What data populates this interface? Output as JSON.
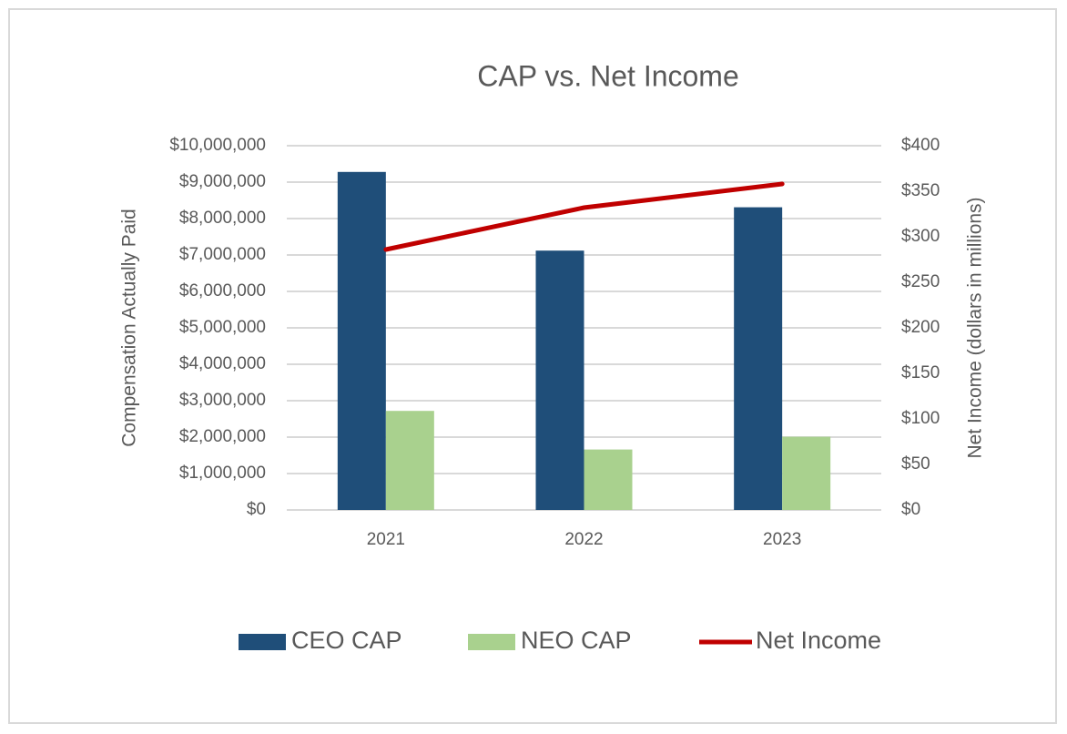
{
  "chart_data": {
    "type": "bar",
    "title": "CAP vs. Net Income",
    "y_label": "Compensation Actually Paid",
    "y2_label": "Net Income (dollars in millions)",
    "categories": [
      "2021",
      "2022",
      "2023"
    ],
    "series": [
      {
        "name": "CEO CAP",
        "type": "bar",
        "color": "#1f4e79",
        "values": [
          9280000,
          7120000,
          8310000
        ]
      },
      {
        "name": "NEO CAP",
        "type": "bar",
        "color": "#a9d18e",
        "values": [
          2720000,
          1660000,
          2010000
        ]
      },
      {
        "name": "Net Income",
        "type": "line",
        "axis": "y2",
        "color": "#c00000",
        "values": [
          286,
          332,
          358
        ]
      }
    ],
    "ylim": [
      0,
      10000000
    ],
    "yticks": [
      {
        "value": 0,
        "label": "$0"
      },
      {
        "value": 1000000,
        "label": "$1,000,000"
      },
      {
        "value": 2000000,
        "label": "$2,000,000"
      },
      {
        "value": 3000000,
        "label": "$3,000,000"
      },
      {
        "value": 4000000,
        "label": "$4,000,000"
      },
      {
        "value": 5000000,
        "label": "$5,000,000"
      },
      {
        "value": 6000000,
        "label": "$6,000,000"
      },
      {
        "value": 7000000,
        "label": "$7,000,000"
      },
      {
        "value": 8000000,
        "label": "$8,000,000"
      },
      {
        "value": 9000000,
        "label": "$9,000,000"
      },
      {
        "value": 10000000,
        "label": "$10,000,000"
      }
    ],
    "y2lim": [
      0,
      400
    ],
    "y2ticks": [
      {
        "value": 0,
        "label": "$0"
      },
      {
        "value": 50,
        "label": "$50"
      },
      {
        "value": 100,
        "label": "$100"
      },
      {
        "value": 150,
        "label": "$150"
      },
      {
        "value": 200,
        "label": "$200"
      },
      {
        "value": 250,
        "label": "$250"
      },
      {
        "value": 300,
        "label": "$300"
      },
      {
        "value": 350,
        "label": "$350"
      },
      {
        "value": 400,
        "label": "$400"
      }
    ],
    "grid": true,
    "legend": "bottom"
  }
}
